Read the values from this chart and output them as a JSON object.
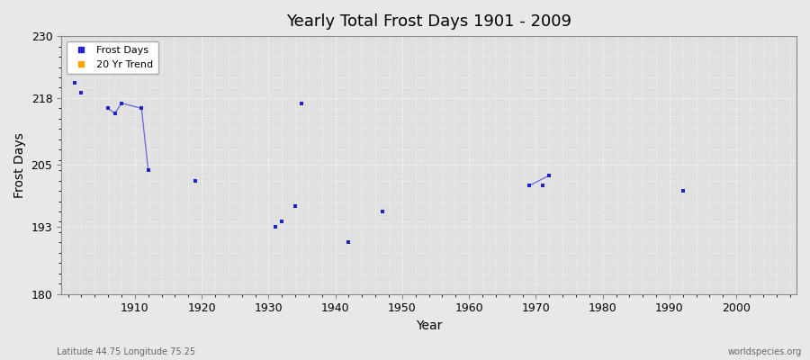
{
  "title": "Yearly Total Frost Days 1901 - 2009",
  "xlabel": "Year",
  "ylabel": "Frost Days",
  "subtitle_left": "Latitude 44.75 Longitude 75.25",
  "subtitle_right": "worldspecies.org",
  "ylim": [
    180,
    230
  ],
  "xlim": [
    1899,
    2009
  ],
  "yticks": [
    180,
    193,
    205,
    218,
    230
  ],
  "xticks": [
    1910,
    1920,
    1930,
    1940,
    1950,
    1960,
    1970,
    1980,
    1990,
    2000
  ],
  "scatter_only_x": [
    1901,
    1902,
    1919,
    1931,
    1932,
    1934,
    1935,
    1942,
    1947,
    1971,
    1972,
    1992
  ],
  "scatter_only_y": [
    221,
    219,
    202,
    193,
    194,
    197,
    217,
    190,
    196,
    201,
    203,
    200
  ],
  "connected_segments": [
    {
      "x": [
        1906,
        1907,
        1908,
        1911,
        1912
      ],
      "y": [
        216,
        215,
        217,
        216,
        204
      ]
    },
    {
      "x": [
        1969,
        1972
      ],
      "y": [
        201,
        203
      ]
    }
  ],
  "point_color": "#2222CC",
  "line_color": "#6666DD",
  "bg_color": "#e8e8e8",
  "plot_bg_color": "#e0e0e0",
  "grid_color": "#ffffff",
  "legend_entries": [
    {
      "label": "Frost Days",
      "color": "#2222CC",
      "marker": "s"
    },
    {
      "label": "20 Yr Trend",
      "color": "#FFA500",
      "marker": "s"
    }
  ]
}
